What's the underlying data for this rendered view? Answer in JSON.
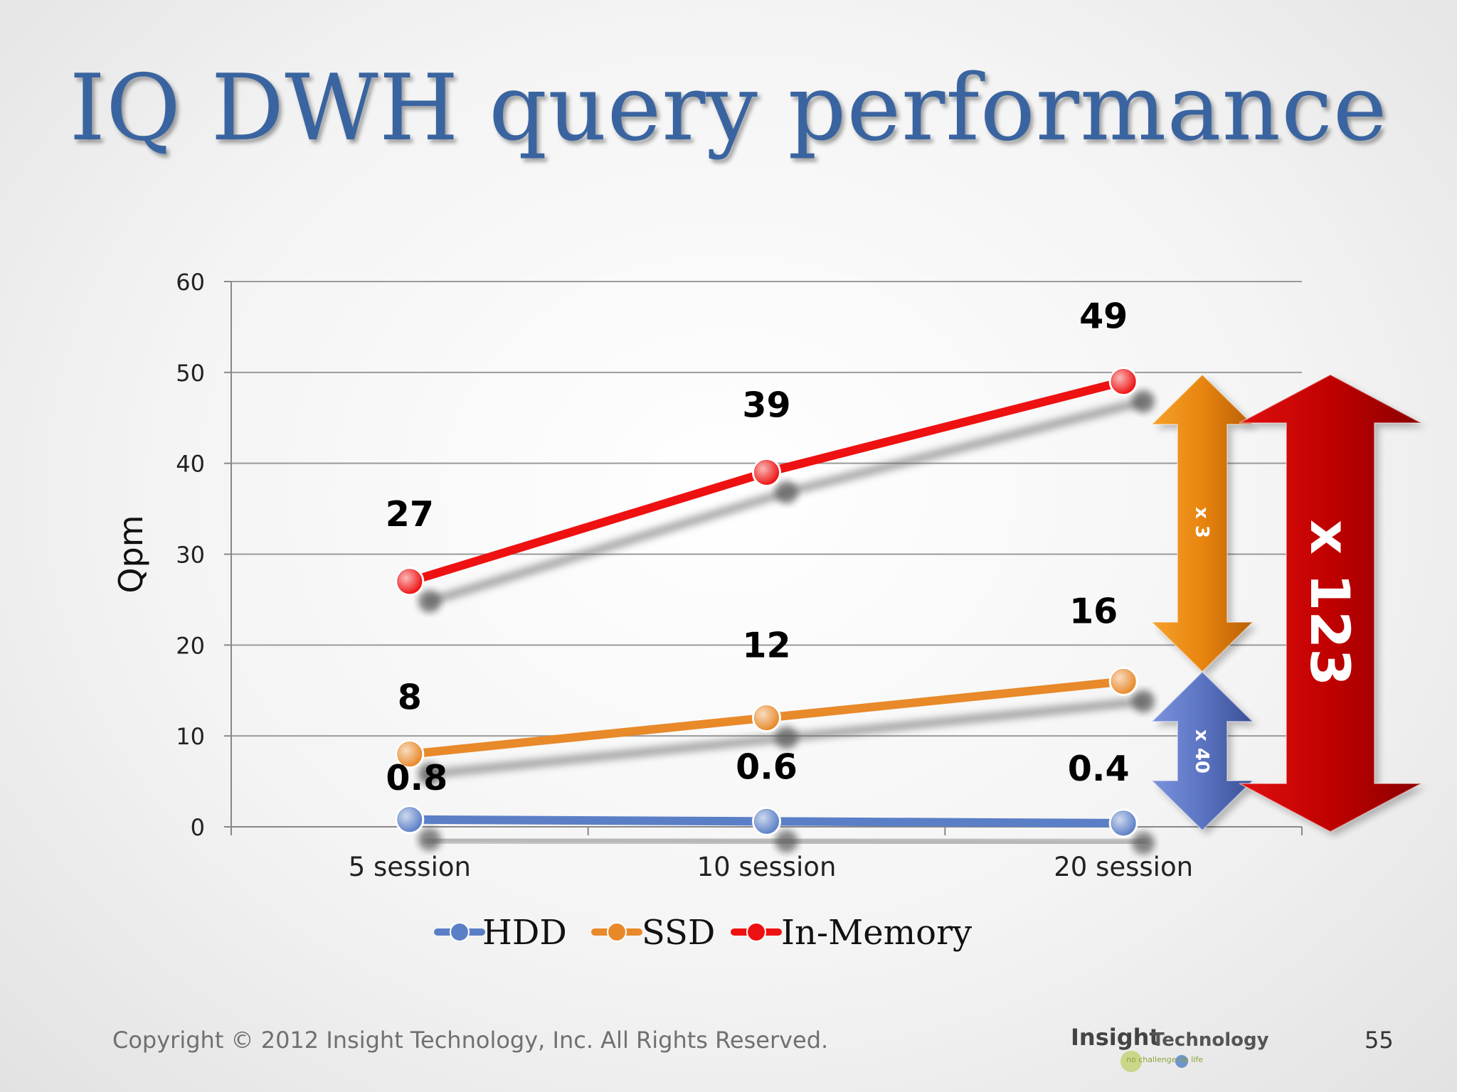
{
  "slide": {
    "title": "IQ DWH query performance",
    "footer": "Copyright © 2012 Insight Technology, Inc. All Rights Reserved.",
    "page_number": "55",
    "logo": {
      "main": "Insight",
      "sub": "Technology",
      "tagline": "no challenge no life"
    }
  },
  "chart_data": {
    "type": "line",
    "title": "",
    "xlabel": "",
    "ylabel": "Qpm",
    "ylim": [
      0,
      60
    ],
    "yticks": [
      0,
      10,
      20,
      30,
      40,
      50,
      60
    ],
    "categories": [
      "5 session",
      "10 session",
      "20 session"
    ],
    "grid": true,
    "legend_position": "bottom",
    "series": [
      {
        "name": "HDD",
        "values": [
          0.8,
          0.6,
          0.4
        ],
        "labels": [
          "0.8",
          "0.6",
          "0.4"
        ],
        "color": "#5b7fc6"
      },
      {
        "name": "SSD",
        "values": [
          8,
          12,
          16
        ],
        "labels": [
          "8",
          "12",
          "16"
        ],
        "color": "#e8892a"
      },
      {
        "name": "In-Memory",
        "values": [
          27,
          39,
          49
        ],
        "labels": [
          "27",
          "39",
          "49"
        ],
        "color": "#ee1111"
      }
    ],
    "annotations": [
      {
        "text": "x 3",
        "color": "#e8850f"
      },
      {
        "text": "x 40",
        "color": "#5b74c2"
      },
      {
        "text": "x 123",
        "color": "#c00000"
      }
    ]
  }
}
